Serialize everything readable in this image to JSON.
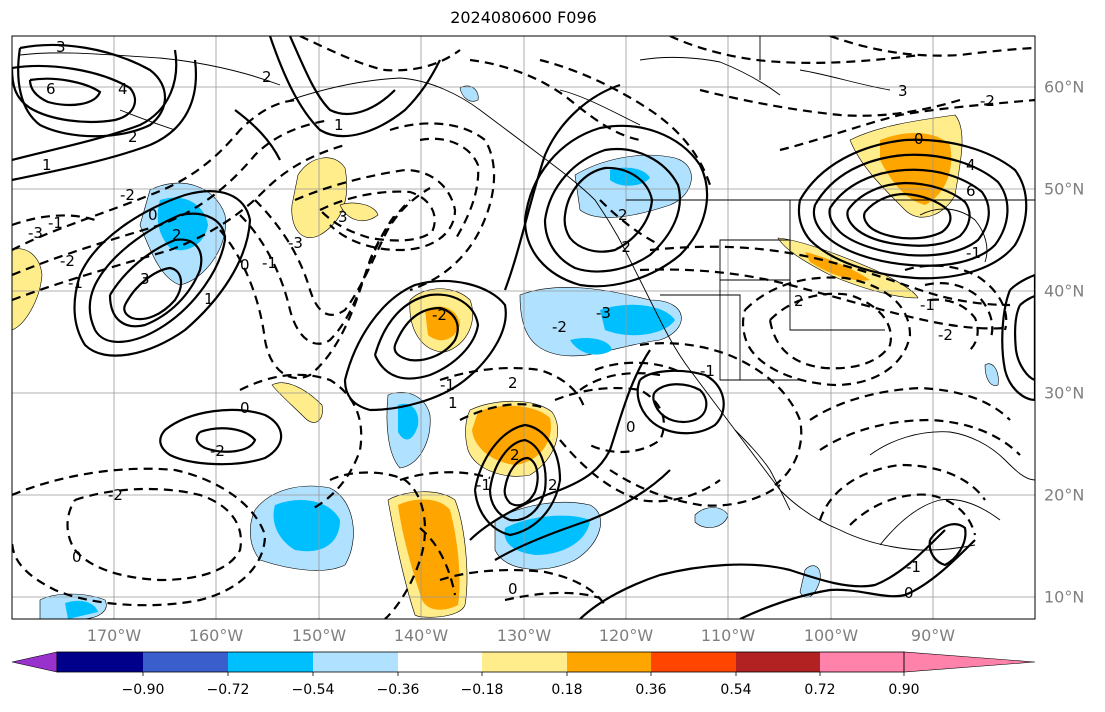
{
  "title": "2024080600 F096",
  "lon_labels": [
    "170°W",
    "160°W",
    "150°W",
    "140°W",
    "130°W",
    "120°W",
    "110°W",
    "100°W",
    "90°W"
  ],
  "lat_labels": [
    "60°N",
    "50°N",
    "40°N",
    "30°N",
    "20°N",
    "10°N"
  ],
  "colorbar": {
    "ticks": [
      "−0.90",
      "−0.72",
      "−0.54",
      "−0.36",
      "−0.18",
      "0.18",
      "0.36",
      "0.54",
      "0.72",
      "0.90"
    ],
    "colors": [
      "#9932cc",
      "#00008b",
      "#3a5fcd",
      "#00bfff",
      "#b0e2ff",
      "#ffffff",
      "#ffec8b",
      "#ffa500",
      "#ff4500",
      "#b22222",
      "#ff82ab"
    ]
  },
  "contour_labels": [
    "3",
    "6",
    "4",
    "2",
    "1",
    "-1",
    "3",
    "-2",
    "-2",
    "-3",
    "1",
    "0",
    "2",
    "-1",
    "3",
    "-3",
    "0",
    "-1",
    "1",
    "2",
    "-2",
    "0",
    "-2",
    "0",
    "-2",
    "-1",
    "1",
    "2",
    "2",
    "2",
    "-1",
    "0",
    "-2",
    "-3",
    "2",
    "-2",
    "-1",
    "3",
    "6",
    "4",
    "0",
    "-2",
    "-1",
    "2",
    "-2",
    "-1",
    "-1",
    "0",
    "0"
  ]
}
